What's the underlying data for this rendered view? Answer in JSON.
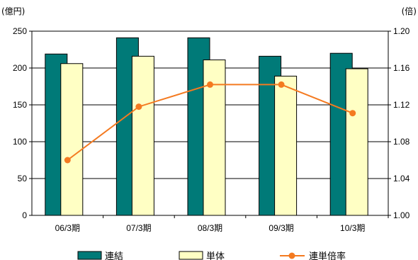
{
  "chart_data": {
    "type": "bar",
    "categories": [
      "06/3期",
      "07/3期",
      "08/3期",
      "09/3期",
      "10/3期"
    ],
    "series": [
      {
        "name": "連結",
        "type": "bar",
        "axis": "left",
        "color": "#007a78",
        "values": [
          219,
          241,
          241,
          216,
          220
        ]
      },
      {
        "name": "単体",
        "type": "bar",
        "axis": "left",
        "color": "#ffffc4",
        "values": [
          206,
          216,
          211,
          189,
          199
        ]
      },
      {
        "name": "連単倍率",
        "type": "line",
        "axis": "right",
        "color": "#f47a20",
        "values": [
          1.06,
          1.118,
          1.142,
          1.142,
          1.111
        ]
      }
    ],
    "y_left": {
      "unit_label": "(億円)",
      "range": [
        0,
        250
      ],
      "ticks": [
        "0",
        "50",
        "100",
        "150",
        "200",
        "250"
      ]
    },
    "y_right": {
      "unit_label": "(倍)",
      "range": [
        1.0,
        1.2
      ],
      "ticks": [
        "1.00",
        "1.04",
        "1.08",
        "1.12",
        "1.16",
        "1.20"
      ]
    },
    "grid": "horizontal",
    "legend_position": "bottom"
  }
}
